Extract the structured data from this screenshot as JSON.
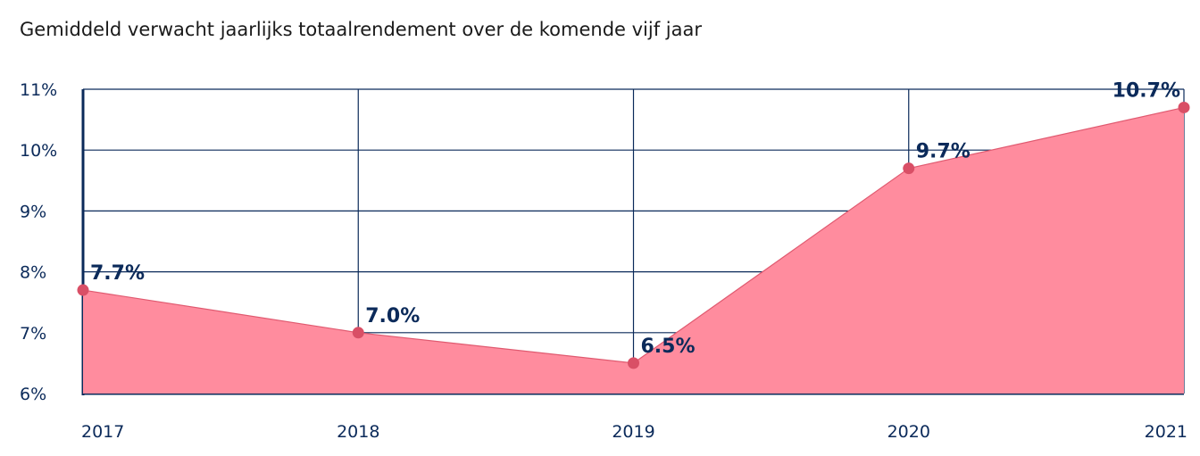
{
  "chart_data": {
    "type": "area",
    "title": "Gemiddeld verwacht jaarlijks totaalrendement over de komende vijf jaar",
    "xlabel": "",
    "ylabel": "",
    "categories": [
      "2017",
      "2018",
      "2019",
      "2020",
      "2021"
    ],
    "values": [
      7.7,
      7.0,
      6.5,
      9.7,
      10.7
    ],
    "data_labels": [
      "7.7%",
      "7.0%",
      "6.5%",
      "9.7%",
      "10.7%"
    ],
    "ylim": [
      6,
      11
    ],
    "yticks": [
      6,
      7,
      8,
      9,
      10,
      11
    ],
    "ytick_labels": [
      "6%",
      "7%",
      "8%",
      "9%",
      "10%",
      "11%"
    ],
    "grid": true,
    "colors": {
      "fill": "#FF8C9E",
      "line": "#E05A70",
      "point": "#D94F66",
      "axis": "#0B2A5A"
    }
  }
}
